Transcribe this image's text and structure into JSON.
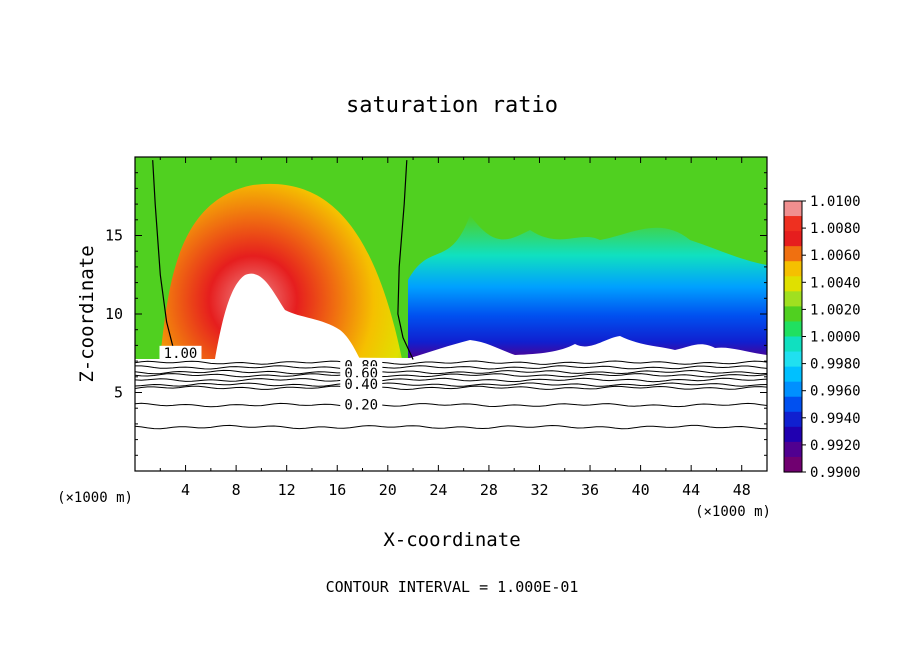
{
  "chart_data": {
    "type": "heatmap",
    "title": "saturation ratio",
    "xlabel": "X-coordinate",
    "ylabel": "Z-coordinate",
    "x_unit_left": "(×1000 m)",
    "x_unit_right": "(×1000 m)",
    "xlim": [
      0,
      50
    ],
    "ylim": [
      0,
      20
    ],
    "x_ticks": [
      "4",
      "8",
      "12",
      "16",
      "20",
      "24",
      "28",
      "32",
      "36",
      "40",
      "44",
      "48"
    ],
    "y_ticks": [
      "5",
      "10",
      "15"
    ],
    "footer": "CONTOUR INTERVAL = 1.000E-01",
    "colorbar": {
      "labels": [
        "1.0100",
        "1.0080",
        "1.0060",
        "1.0040",
        "1.0020",
        "1.0000",
        "0.9980",
        "0.9960",
        "0.9940",
        "0.9920",
        "0.9900"
      ],
      "colors": [
        "#f08f8f",
        "#ee3020",
        "#e61e1e",
        "#f07010",
        "#f5c000",
        "#e0e000",
        "#a0e020",
        "#50d020",
        "#20e060",
        "#10e0c0",
        "#20e0f0",
        "#00c0ff",
        "#0090ff",
        "#0050f0",
        "#1020d0",
        "#2000b0",
        "#500090",
        "#700070"
      ]
    },
    "contour_labels": [
      {
        "text": "1.00",
        "x": 3.6,
        "y": 7.4
      },
      {
        "text": "0.80",
        "x": 17.9,
        "y": 6.6
      },
      {
        "text": "0.60",
        "x": 17.9,
        "y": 6.1
      },
      {
        "text": "0.40",
        "x": 17.9,
        "y": 5.4
      },
      {
        "text": "0.20",
        "x": 17.9,
        "y": 4.1
      }
    ],
    "contour_levels_lower": [
      6.9,
      6.6,
      6.3,
      6.1,
      5.8,
      5.5,
      5.3,
      4.2,
      2.8
    ],
    "saturation_boundary_left": [
      [
        1.4,
        19.8
      ],
      [
        1.6,
        17.0
      ],
      [
        2.0,
        12.5
      ],
      [
        2.5,
        9.5
      ],
      [
        3.1,
        7.6
      ]
    ],
    "saturation_boundary_right": [
      [
        21.5,
        19.8
      ],
      [
        21.3,
        17.0
      ],
      [
        20.9,
        13.0
      ],
      [
        20.8,
        10.0
      ],
      [
        21.2,
        8.5
      ],
      [
        22.0,
        7.1
      ]
    ]
  }
}
